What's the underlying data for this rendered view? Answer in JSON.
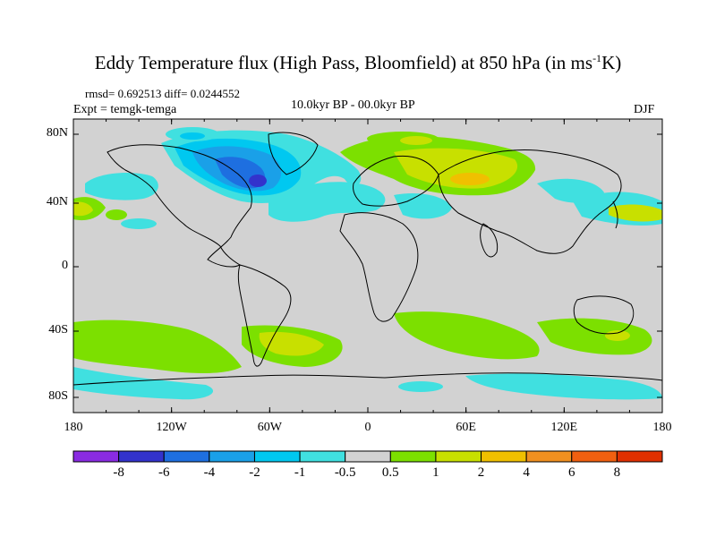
{
  "title": {
    "main": "Eddy Temperature flux (High Pass, Bloomfield) at 850 hPa (in ms",
    "sup": "-1",
    "tail": "K)"
  },
  "stats": "rmsd= 0.692513 diff= 0.0244552",
  "expt": "Expt = temgk-temga",
  "period": "10.0kyr BP - 00.0kyr BP",
  "season": "DJF",
  "lat_labels": [
    "80N",
    "40N",
    "0",
    "40S",
    "80S"
  ],
  "lon_labels": [
    "180",
    "120W",
    "60W",
    "0",
    "60E",
    "120E",
    "180"
  ],
  "colorbar": {
    "labels": [
      "-8",
      "-6",
      "-4",
      "-2",
      "-1",
      "-0.5",
      "0.5",
      "1",
      "2",
      "4",
      "6",
      "8"
    ],
    "colors": [
      "#8a2be2",
      "#3333cc",
      "#1e6fe0",
      "#1aa0e8",
      "#00c8f0",
      "#40e0e0",
      "#d2d2d2",
      "#7ce000",
      "#c8e000",
      "#f0c000",
      "#f09020",
      "#f06010",
      "#e03000"
    ]
  },
  "colors": {
    "ocean_land_background": "#d2d2d2",
    "coastline": "#000000"
  }
}
